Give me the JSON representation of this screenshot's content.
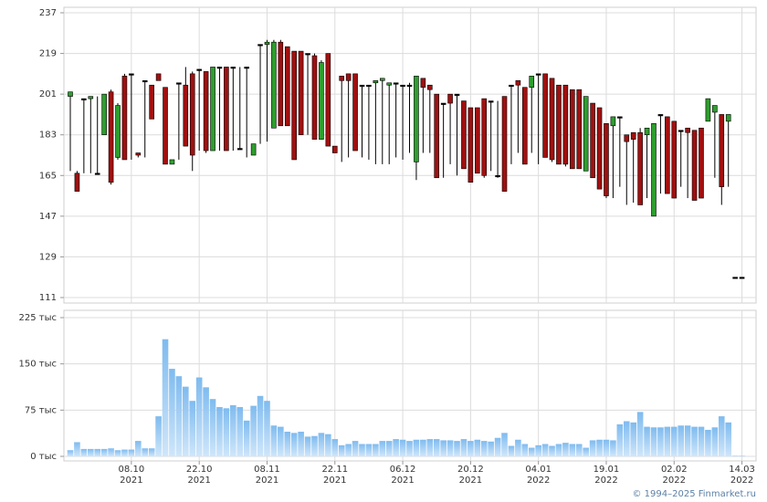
{
  "chart_data": [
    {
      "type": "candlestick",
      "ylim": [
        111,
        237
      ],
      "yticks": [
        111,
        129,
        147,
        165,
        183,
        201,
        219,
        237
      ],
      "grid": true,
      "up_color": "#2e9e2e",
      "down_color": "#a01010",
      "ohlc": [
        [
          200,
          202,
          167,
          202
        ],
        [
          166,
          167,
          158,
          158
        ],
        [
          199,
          199,
          166,
          199
        ],
        [
          199,
          200,
          166,
          200
        ],
        [
          166,
          200,
          166,
          166
        ],
        [
          183,
          201,
          183,
          201
        ],
        [
          202,
          203,
          161,
          162
        ],
        [
          173,
          197,
          172,
          196
        ],
        [
          209,
          210,
          172,
          172
        ],
        [
          210,
          210,
          172,
          210
        ],
        [
          175,
          175,
          173,
          174
        ],
        [
          207,
          207,
          173,
          207
        ],
        [
          205,
          205,
          190,
          190
        ],
        [
          210,
          210,
          207,
          207
        ],
        [
          204,
          204,
          170,
          170
        ],
        [
          170,
          172,
          170,
          172
        ],
        [
          206,
          206,
          172,
          206
        ],
        [
          205,
          213,
          178,
          178
        ],
        [
          210,
          211,
          167,
          174
        ],
        [
          212,
          212,
          176,
          212
        ],
        [
          211,
          211,
          175,
          176
        ],
        [
          176,
          213,
          176,
          213
        ],
        [
          213,
          213,
          176,
          213
        ],
        [
          213,
          213,
          176,
          176
        ],
        [
          213,
          213,
          176,
          213
        ],
        [
          177,
          213,
          177,
          177
        ],
        [
          213,
          213,
          173,
          213
        ],
        [
          174,
          179,
          174,
          179
        ],
        [
          223,
          223,
          179,
          223
        ],
        [
          223,
          225,
          180,
          224
        ],
        [
          186,
          225,
          186,
          224
        ],
        [
          224,
          225,
          187,
          187
        ],
        [
          222,
          222,
          187,
          187
        ],
        [
          220,
          220,
          172,
          172
        ],
        [
          220,
          220,
          183,
          183
        ],
        [
          219,
          219,
          183,
          219
        ],
        [
          218,
          219,
          181,
          181
        ],
        [
          181,
          216,
          181,
          215
        ],
        [
          219,
          219,
          178,
          178
        ],
        [
          178,
          178,
          175,
          175
        ],
        [
          209,
          209,
          171,
          207
        ],
        [
          210,
          210,
          173,
          207
        ],
        [
          210,
          210,
          176,
          176
        ],
        [
          205,
          205,
          173,
          205
        ],
        [
          205,
          205,
          172,
          205
        ],
        [
          206,
          207,
          170,
          207
        ],
        [
          207,
          208,
          170,
          208
        ],
        [
          205,
          206,
          170,
          206
        ],
        [
          206,
          206,
          173,
          206
        ],
        [
          205,
          205,
          172,
          205
        ],
        [
          205,
          206,
          175,
          205
        ],
        [
          171,
          209,
          163,
          209
        ],
        [
          208,
          208,
          175,
          204
        ],
        [
          205,
          205,
          175,
          203
        ],
        [
          201,
          201,
          164,
          164
        ],
        [
          197,
          197,
          164,
          197
        ],
        [
          201,
          201,
          170,
          197
        ],
        [
          201,
          201,
          165,
          201
        ],
        [
          198,
          198,
          168,
          168
        ],
        [
          195,
          195,
          162,
          162
        ],
        [
          195,
          195,
          166,
          166
        ],
        [
          199,
          199,
          164,
          165
        ],
        [
          198,
          198,
          167,
          198
        ],
        [
          165,
          198,
          164,
          165
        ],
        [
          200,
          200,
          158,
          158
        ],
        [
          205,
          205,
          170,
          205
        ],
        [
          207,
          207,
          175,
          205
        ],
        [
          204,
          204,
          170,
          170
        ],
        [
          204,
          209,
          175,
          209
        ],
        [
          210,
          210,
          170,
          210
        ],
        [
          210,
          210,
          173,
          173
        ],
        [
          208,
          208,
          171,
          172
        ],
        [
          205,
          205,
          170,
          170
        ],
        [
          205,
          205,
          169,
          170
        ],
        [
          203,
          203,
          168,
          168
        ],
        [
          203,
          203,
          168,
          168
        ],
        [
          167,
          200,
          167,
          200
        ],
        [
          197,
          197,
          164,
          164
        ],
        [
          195,
          195,
          159,
          159
        ],
        [
          188,
          188,
          155,
          156
        ],
        [
          187,
          191,
          155,
          191
        ],
        [
          191,
          191,
          160,
          191
        ],
        [
          183,
          183,
          152,
          180
        ],
        [
          184,
          184,
          153,
          181
        ],
        [
          184,
          186,
          152,
          152
        ],
        [
          183,
          186,
          155,
          186
        ],
        [
          147,
          188,
          147,
          188
        ],
        [
          192,
          192,
          157,
          192
        ],
        [
          191,
          191,
          157,
          157
        ],
        [
          189,
          189,
          155,
          155
        ],
        [
          185,
          185,
          160,
          185
        ],
        [
          186,
          186,
          155,
          184
        ],
        [
          185,
          185,
          154,
          154
        ],
        [
          186,
          186,
          155,
          155
        ],
        [
          189,
          199,
          189,
          199
        ],
        [
          193,
          196,
          164,
          196
        ],
        [
          192,
          192,
          152,
          160
        ],
        [
          189,
          192,
          160,
          192
        ],
        [
          120,
          120,
          120,
          120
        ],
        [
          120,
          120,
          120,
          120
        ]
      ]
    },
    {
      "type": "bar",
      "ylim": [
        0,
        225
      ],
      "color": "#8cc4f0",
      "grid": true,
      "yticks": [
        {
          "value": 0,
          "label": "0 тыс"
        },
        {
          "value": 75,
          "label": "75 тыс"
        },
        {
          "value": 150,
          "label": "150 тыс"
        },
        {
          "value": 225,
          "label": "225 тыс"
        }
      ],
      "categories": [
        null,
        null,
        null,
        null,
        null,
        null,
        null,
        null,
        null,
        [
          "08.10",
          "2021"
        ],
        null,
        null,
        null,
        null,
        null,
        null,
        null,
        null,
        null,
        [
          "22.10",
          "2021"
        ],
        null,
        null,
        null,
        null,
        null,
        null,
        null,
        null,
        null,
        [
          "08.11",
          "2021"
        ],
        null,
        null,
        null,
        null,
        null,
        null,
        null,
        null,
        null,
        [
          "22.11",
          "2021"
        ],
        null,
        null,
        null,
        null,
        null,
        null,
        null,
        null,
        null,
        [
          "06.12",
          "2021"
        ],
        null,
        null,
        null,
        null,
        null,
        null,
        null,
        null,
        null,
        [
          "20.12",
          "2021"
        ],
        null,
        null,
        null,
        null,
        null,
        null,
        null,
        null,
        null,
        [
          "04.01",
          "2022"
        ],
        null,
        null,
        null,
        null,
        null,
        null,
        null,
        null,
        null,
        [
          "19.01",
          "2022"
        ],
        null,
        null,
        null,
        null,
        null,
        null,
        null,
        null,
        null,
        [
          "02.02",
          "2022"
        ],
        null,
        null,
        null,
        null,
        null,
        null,
        null,
        null,
        null,
        [
          "14.03",
          "2022"
        ]
      ],
      "values": [
        10,
        23,
        12,
        12,
        12,
        12,
        13,
        10,
        11,
        11,
        25,
        13,
        13,
        65,
        190,
        142,
        130,
        113,
        90,
        128,
        112,
        93,
        80,
        78,
        83,
        80,
        58,
        82,
        98,
        90,
        50,
        48,
        40,
        38,
        40,
        32,
        33,
        38,
        36,
        28,
        18,
        20,
        25,
        20,
        20,
        20,
        25,
        25,
        28,
        27,
        25,
        27,
        27,
        28,
        28,
        26,
        26,
        25,
        28,
        25,
        27,
        25,
        24,
        30,
        38,
        17,
        27,
        20,
        14,
        18,
        20,
        17,
        20,
        22,
        20,
        20,
        14,
        26,
        27,
        27,
        26,
        52,
        57,
        55,
        72,
        48,
        47,
        47,
        48,
        48,
        50,
        50,
        48,
        48,
        43,
        47,
        65,
        55,
        1,
        1
      ]
    }
  ],
  "footer": "© 1994–2025 Finmarket.ru"
}
